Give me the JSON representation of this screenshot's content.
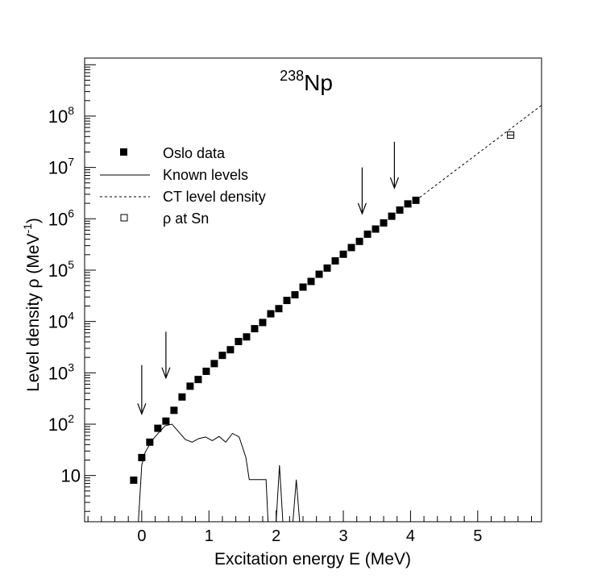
{
  "chart_data": {
    "type": "scatter",
    "title_base": "Np",
    "title_super": "238",
    "xlabel": "Excitation energy E (MeV)",
    "ylabel_main": "Level density ρ (MeV",
    "ylabel_sup": "-1",
    "ylabel_close": ")",
    "xlim": [
      -0.85,
      5.95
    ],
    "ylim_log": [
      0.1,
      9.13
    ],
    "y_scale": "log",
    "grid": false,
    "legend_position": "top-left",
    "x_ticks": [
      {
        "v": 0,
        "label": "0"
      },
      {
        "v": 1,
        "label": "1"
      },
      {
        "v": 2,
        "label": "2"
      },
      {
        "v": 3,
        "label": "3"
      },
      {
        "v": 4,
        "label": "4"
      },
      {
        "v": 5,
        "label": "5"
      }
    ],
    "y_ticks": [
      {
        "exp": 1,
        "base": "10",
        "sup": ""
      },
      {
        "exp": 2,
        "base": "10",
        "sup": "2"
      },
      {
        "exp": 3,
        "base": "10",
        "sup": "3"
      },
      {
        "exp": 4,
        "base": "10",
        "sup": "4"
      },
      {
        "exp": 5,
        "base": "10",
        "sup": "5"
      },
      {
        "exp": 6,
        "base": "10",
        "sup": "6"
      },
      {
        "exp": 7,
        "base": "10",
        "sup": "7"
      },
      {
        "exp": 8,
        "base": "10",
        "sup": "8"
      }
    ],
    "legend": [
      {
        "label": "Oslo data",
        "marker": "filled-square"
      },
      {
        "label": "Known levels",
        "marker": "solid-line"
      },
      {
        "label": "CT level density",
        "marker": "dashed-line"
      },
      {
        "label": "ρ at Sn",
        "marker": "open-square"
      }
    ],
    "series": [
      {
        "name": "Oslo data",
        "style": "filled-square",
        "x": [
          -0.24,
          -0.12,
          0.0,
          0.12,
          0.24,
          0.36,
          0.48,
          0.6,
          0.72,
          0.84,
          0.96,
          1.08,
          1.2,
          1.32,
          1.44,
          1.56,
          1.68,
          1.8,
          1.92,
          2.04,
          2.16,
          2.28,
          2.4,
          2.52,
          2.64,
          2.76,
          2.88,
          3.0,
          3.12,
          3.24,
          3.36,
          3.48,
          3.6,
          3.72,
          3.84,
          3.96,
          4.08
        ],
        "log10_y": [
          0.02,
          0.91,
          1.35,
          1.65,
          1.92,
          2.06,
          2.27,
          2.53,
          2.74,
          2.87,
          3.03,
          3.18,
          3.34,
          3.45,
          3.61,
          3.7,
          3.86,
          3.98,
          4.15,
          4.25,
          4.41,
          4.52,
          4.67,
          4.78,
          4.92,
          5.04,
          5.18,
          5.31,
          5.44,
          5.56,
          5.7,
          5.8,
          5.92,
          6.05,
          6.17,
          6.29,
          6.36
        ]
      },
      {
        "name": "Known levels",
        "style": "solid-line",
        "x": [
          -0.05,
          0.0,
          0.05,
          0.15,
          0.25,
          0.35,
          0.45,
          0.55,
          0.65,
          0.75,
          0.85,
          0.95,
          1.05,
          1.15,
          1.25,
          1.35,
          1.45,
          1.55,
          1.6,
          1.65,
          1.75,
          1.8,
          1.85,
          1.88,
          1.95,
          2.0,
          2.05,
          2.1,
          2.15,
          2.2,
          2.25,
          2.3,
          2.35,
          2.4,
          2.45
        ],
        "log10_y": [
          0.1,
          1.2,
          1.45,
          1.68,
          1.83,
          1.97,
          2.0,
          1.85,
          1.7,
          1.65,
          1.72,
          1.75,
          1.68,
          1.76,
          1.65,
          1.82,
          1.75,
          1.35,
          0.92,
          0.92,
          0.92,
          0.92,
          0.92,
          0.1,
          0.1,
          0.1,
          1.2,
          0.1,
          0.1,
          0.1,
          0.1,
          0.92,
          0.1,
          0.1,
          0.1
        ]
      },
      {
        "name": "CT level density",
        "style": "dashed-line",
        "x": [
          4.08,
          5.95
        ],
        "log10_y": [
          6.36,
          8.21
        ]
      },
      {
        "name": "ρ at Sn",
        "style": "open-square",
        "x": [
          5.49
        ],
        "log10_y": [
          7.63
        ]
      }
    ],
    "annotations": [
      {
        "type": "arrow-down",
        "x": 0.0,
        "log10_y_top": 3.15,
        "log10_y_bottom": 2.2
      },
      {
        "type": "arrow-down",
        "x": 0.36,
        "log10_y_top": 3.8,
        "log10_y_bottom": 2.9
      },
      {
        "type": "arrow-down",
        "x": 3.28,
        "log10_y_top": 7.0,
        "log10_y_bottom": 6.1
      },
      {
        "type": "arrow-down",
        "x": 3.76,
        "log10_y_top": 7.5,
        "log10_y_bottom": 6.6
      }
    ]
  }
}
